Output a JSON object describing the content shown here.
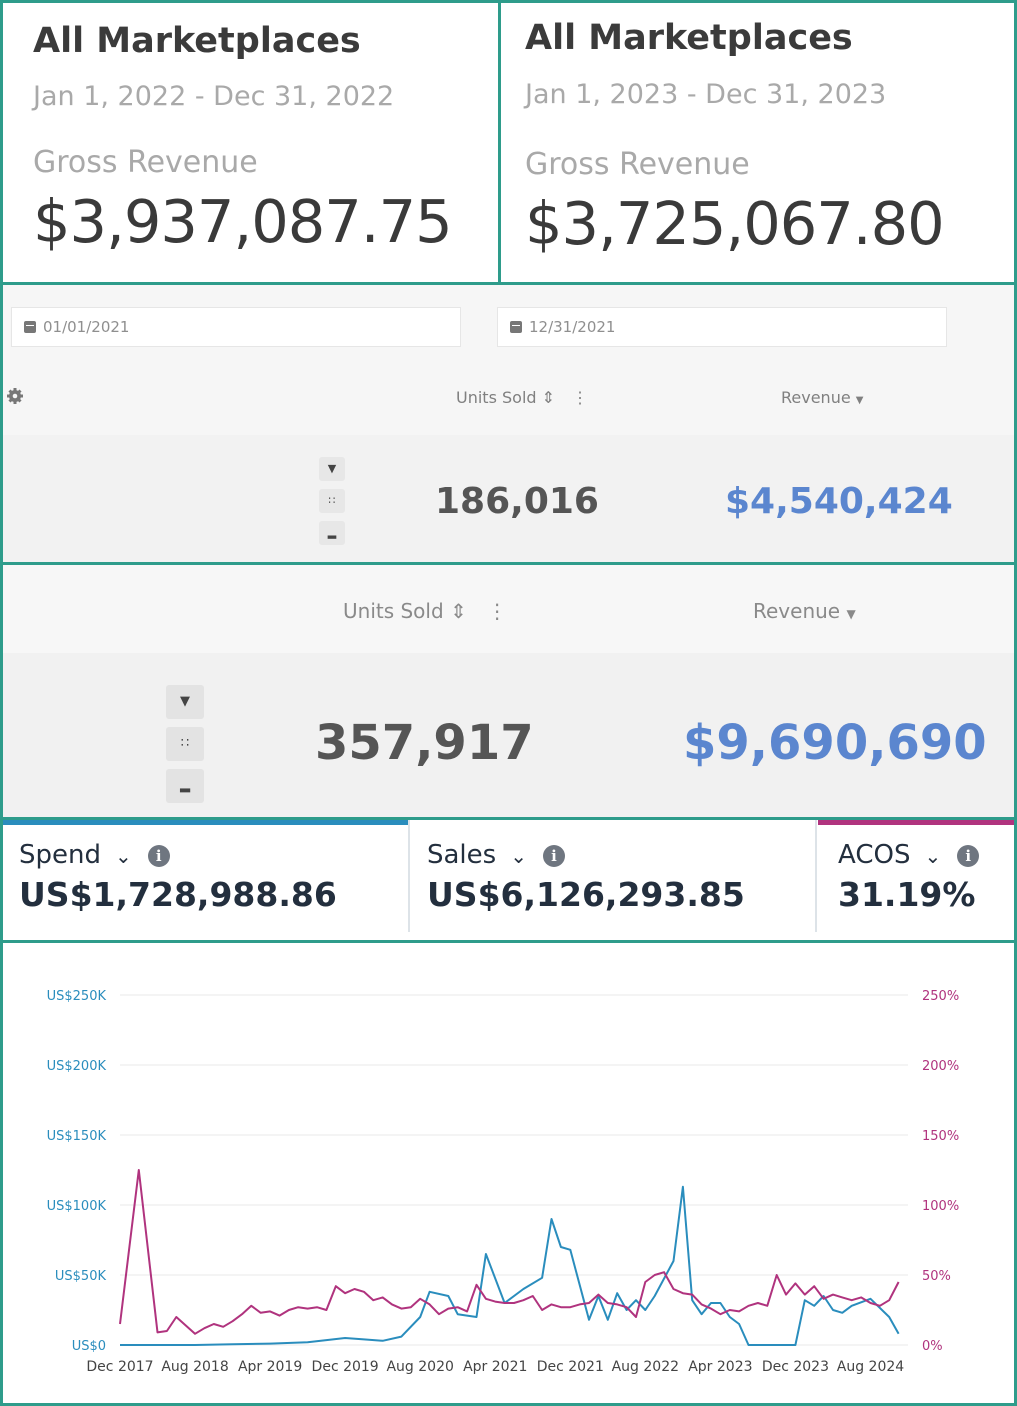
{
  "cards": [
    {
      "title": "All Marketplaces",
      "date_range": "Jan 1, 2022 - Dec 31, 2022",
      "label": "Gross Revenue",
      "value": "$3,937,087.75"
    },
    {
      "title": "All Marketplaces",
      "date_range": "Jan 1, 2023 - Dec 31, 2023",
      "label": "Gross Revenue",
      "value": "$3,725,067.80"
    }
  ],
  "filters": {
    "start_date": "01/01/2021",
    "end_date": "12/31/2021"
  },
  "table1": {
    "units_header": "Units Sold",
    "revenue_header": "Revenue",
    "units_value": "186,016",
    "revenue_value": "$4,540,424"
  },
  "table2": {
    "units_header": "Units Sold",
    "revenue_header": "Revenue",
    "units_value": "357,917",
    "revenue_value": "$9,690,690"
  },
  "metrics": {
    "spend": {
      "label": "Spend",
      "value": "US$1,728,988.86",
      "color": "#2a8dbd"
    },
    "sales": {
      "label": "Sales",
      "value": "US$6,126,293.85"
    },
    "acos": {
      "label": "ACOS",
      "value": "31.19%",
      "color": "#b0337e"
    }
  },
  "icons": {
    "gear": "gear-icon",
    "calendar": "calendar-icon",
    "expand": "double-chevron-icon",
    "grid": "grid-icon",
    "chart": "chart-icon",
    "info": "info-icon",
    "chevron": "chevron-down-icon"
  },
  "chart_data": {
    "type": "line",
    "x_tick_labels": [
      "Dec 2017",
      "Aug 2018",
      "Apr 2019",
      "Dec 2019",
      "Aug 2020",
      "Apr 2021",
      "Dec 2021",
      "Aug 2022",
      "Apr 2023",
      "Dec 2023",
      "Aug 2024"
    ],
    "y_left_ticks": [
      "US$0",
      "US$50K",
      "US$100K",
      "US$150K",
      "US$200K",
      "US$250K"
    ],
    "y_right_ticks": [
      "0%",
      "50%",
      "100%",
      "150%",
      "200%",
      "250%"
    ],
    "y_left_range": [
      0,
      250000
    ],
    "y_right_range": [
      0,
      250
    ],
    "x_range": [
      0,
      84
    ],
    "series": [
      {
        "name": "Spend",
        "axis": "left",
        "color": "#2a8dbd",
        "points": [
          [
            0,
            0
          ],
          [
            4,
            0
          ],
          [
            8,
            0
          ],
          [
            12,
            500
          ],
          [
            16,
            1000
          ],
          [
            20,
            2000
          ],
          [
            22,
            3500
          ],
          [
            24,
            5000
          ],
          [
            26,
            4000
          ],
          [
            28,
            3000
          ],
          [
            30,
            6000
          ],
          [
            32,
            20000
          ],
          [
            33,
            38000
          ],
          [
            35,
            35000
          ],
          [
            36,
            22000
          ],
          [
            38,
            20000
          ],
          [
            39,
            65000
          ],
          [
            41,
            30000
          ],
          [
            43,
            40000
          ],
          [
            45,
            48000
          ],
          [
            46,
            90000
          ],
          [
            47,
            70000
          ],
          [
            48,
            68000
          ],
          [
            50,
            18000
          ],
          [
            51,
            35000
          ],
          [
            52,
            18000
          ],
          [
            53,
            37000
          ],
          [
            54,
            25000
          ],
          [
            55,
            32000
          ],
          [
            56,
            25000
          ],
          [
            57,
            35000
          ],
          [
            59,
            60000
          ],
          [
            60,
            113000
          ],
          [
            61,
            32000
          ],
          [
            62,
            22000
          ],
          [
            63,
            30000
          ],
          [
            64,
            30000
          ],
          [
            65,
            20000
          ],
          [
            66,
            15000
          ],
          [
            67,
            0
          ],
          [
            72,
            0
          ],
          [
            73,
            32000
          ],
          [
            74,
            28000
          ],
          [
            75,
            35000
          ],
          [
            76,
            25000
          ],
          [
            77,
            23000
          ],
          [
            78,
            28000
          ],
          [
            80,
            33000
          ],
          [
            82,
            20000
          ],
          [
            83,
            8000
          ]
        ]
      },
      {
        "name": "ACOS",
        "axis": "right",
        "color": "#b0337e",
        "points": [
          [
            0,
            15
          ],
          [
            2,
            125
          ],
          [
            4,
            9
          ],
          [
            5,
            10
          ],
          [
            6,
            20
          ],
          [
            8,
            8
          ],
          [
            9,
            12
          ],
          [
            10,
            15
          ],
          [
            11,
            13
          ],
          [
            12,
            17
          ],
          [
            13,
            22
          ],
          [
            14,
            28
          ],
          [
            15,
            23
          ],
          [
            16,
            24
          ],
          [
            17,
            21
          ],
          [
            18,
            25
          ],
          [
            19,
            27
          ],
          [
            20,
            26
          ],
          [
            21,
            27
          ],
          [
            22,
            25
          ],
          [
            23,
            42
          ],
          [
            24,
            37
          ],
          [
            25,
            40
          ],
          [
            26,
            38
          ],
          [
            27,
            32
          ],
          [
            28,
            34
          ],
          [
            29,
            29
          ],
          [
            30,
            26
          ],
          [
            31,
            27
          ],
          [
            32,
            33
          ],
          [
            33,
            29
          ],
          [
            34,
            22
          ],
          [
            35,
            26
          ],
          [
            36,
            27
          ],
          [
            37,
            24
          ],
          [
            38,
            43
          ],
          [
            39,
            33
          ],
          [
            40,
            31
          ],
          [
            41,
            30
          ],
          [
            42,
            30
          ],
          [
            43,
            32
          ],
          [
            44,
            35
          ],
          [
            45,
            25
          ],
          [
            46,
            29
          ],
          [
            47,
            27
          ],
          [
            48,
            27
          ],
          [
            49,
            29
          ],
          [
            50,
            30
          ],
          [
            51,
            36
          ],
          [
            52,
            30
          ],
          [
            53,
            29
          ],
          [
            54,
            27
          ],
          [
            55,
            20
          ],
          [
            56,
            45
          ],
          [
            57,
            50
          ],
          [
            58,
            52
          ],
          [
            59,
            40
          ],
          [
            60,
            37
          ],
          [
            61,
            36
          ],
          [
            62,
            29
          ],
          [
            63,
            26
          ],
          [
            64,
            22
          ],
          [
            65,
            25
          ],
          [
            66,
            24
          ],
          [
            67,
            28
          ],
          [
            68,
            30
          ],
          [
            69,
            28
          ],
          [
            70,
            50
          ],
          [
            71,
            36
          ],
          [
            72,
            44
          ],
          [
            73,
            36
          ],
          [
            74,
            42
          ],
          [
            75,
            33
          ],
          [
            76,
            36
          ],
          [
            77,
            34
          ],
          [
            78,
            32
          ],
          [
            79,
            34
          ],
          [
            80,
            30
          ],
          [
            81,
            28
          ],
          [
            82,
            32
          ],
          [
            83,
            45
          ]
        ]
      }
    ]
  }
}
